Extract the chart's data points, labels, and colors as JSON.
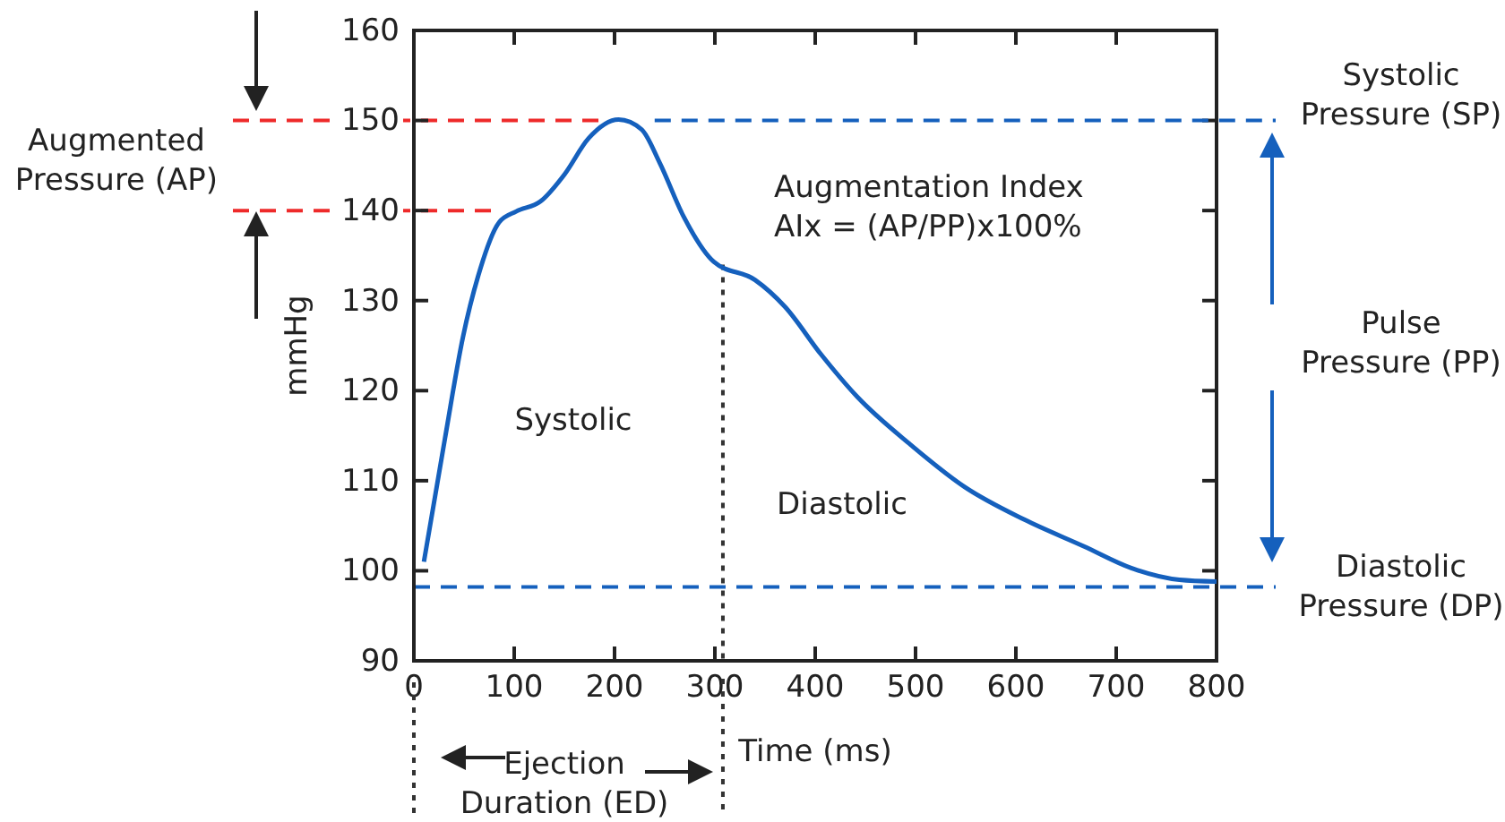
{
  "chart_data": {
    "type": "line",
    "xlabel": "Time (ms)",
    "ylabel": "mmHg",
    "x": [
      10,
      31,
      49,
      64,
      85,
      102,
      126,
      150,
      174,
      204,
      227,
      245,
      269,
      299,
      340,
      370,
      406,
      442,
      495,
      549,
      608,
      668,
      715,
      763,
      800
    ],
    "series": [
      {
        "color": "#1560bd",
        "values": [
          101,
          114.7,
          126,
          132.7,
          138.7,
          139.9,
          141,
          144,
          148,
          150.1,
          149,
          145.3,
          139.3,
          134.3,
          132.3,
          129.3,
          124,
          119.3,
          114,
          109.3,
          105.7,
          102.7,
          100.3,
          99,
          98.8
        ]
      }
    ],
    "xlim": [
      0,
      800
    ],
    "xticks": [
      0,
      100,
      200,
      300,
      400,
      500,
      600,
      700,
      800
    ],
    "ylim": [
      90,
      160
    ],
    "yticks": [
      90,
      100,
      110,
      120,
      130,
      140,
      150,
      160
    ],
    "grid": false,
    "marker": "none",
    "line_style": "solid",
    "ref_lines": [
      {
        "axis": "y",
        "value": 150,
        "label": "Systolic\nPressure (SP)",
        "color": "#1560bd",
        "line_style": "dashed"
      },
      {
        "axis": "y",
        "value": 98.2,
        "label": "Diastolic\nPressure (DP)",
        "color": "#1560bd",
        "line_style": "dashed"
      },
      {
        "axis": "y",
        "value": 150,
        "label": null,
        "color": "#ee2a2a",
        "line_style": "dashed"
      },
      {
        "axis": "y",
        "value": 140,
        "label": null,
        "color": "#ee2a2a",
        "line_style": "dashed"
      },
      {
        "axis": "x",
        "value": 308,
        "label": null,
        "color": "#333333",
        "line_style": "dotted"
      }
    ],
    "annotations": [
      "Augmented\nPressure (AP)",
      "Pulse\nPressure (PP)",
      "Augmentation Index\nAIx = (AP/PP)x100%",
      "Systolic",
      "Diastolic",
      "Ejection\nDuration (ED)"
    ]
  }
}
